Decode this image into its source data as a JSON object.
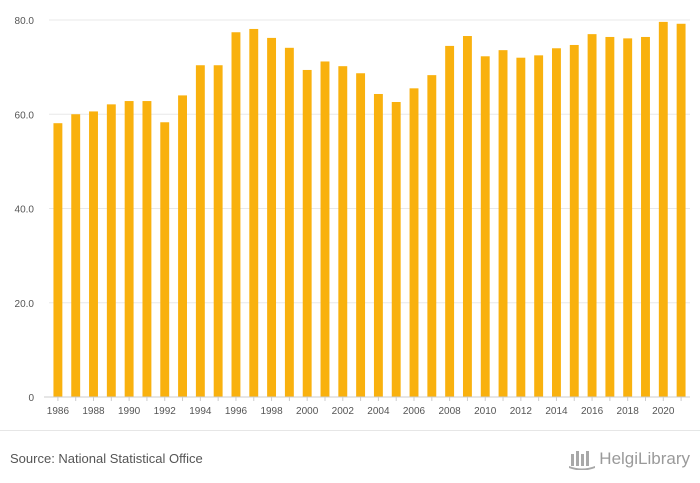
{
  "chart_data": {
    "type": "bar",
    "title": "",
    "xlabel": "",
    "ylabel": "",
    "categories": [
      1986,
      1987,
      1988,
      1989,
      1990,
      1991,
      1992,
      1993,
      1994,
      1995,
      1996,
      1997,
      1998,
      1999,
      2000,
      2001,
      2002,
      2003,
      2004,
      2005,
      2006,
      2007,
      2008,
      2009,
      2010,
      2011,
      2012,
      2013,
      2014,
      2015,
      2016,
      2017,
      2018,
      2019,
      2020,
      2021
    ],
    "values": [
      58.1,
      60.0,
      60.6,
      62.1,
      62.8,
      62.8,
      58.3,
      64.0,
      70.4,
      70.4,
      77.4,
      78.1,
      76.2,
      74.1,
      69.4,
      71.2,
      70.2,
      68.7,
      64.3,
      62.6,
      65.5,
      68.3,
      74.5,
      76.6,
      72.3,
      73.6,
      72.0,
      72.5,
      74.0,
      74.7,
      77.0,
      76.4,
      76.1,
      76.4,
      79.6,
      79.2
    ],
    "ylim": [
      0,
      80
    ],
    "yticks": [
      0,
      20,
      40,
      60,
      80
    ],
    "ytick_labels": [
      "0",
      "20.0",
      "40.0",
      "60.0",
      "80.0"
    ],
    "xtick_labels": [
      "1986",
      "1988",
      "1990",
      "1992",
      "1994",
      "1996",
      "1998",
      "2000",
      "2002",
      "2004",
      "2006",
      "2008",
      "2010",
      "2012",
      "2014",
      "2016",
      "2018",
      "2020"
    ],
    "grid": true,
    "bar_color": "#f9b10e",
    "grid_color": "#e8e8e8",
    "axis_color": "#cccccc",
    "tick_text_color": "#555555"
  },
  "footer": {
    "source": "Source: National Statistical Office",
    "brand": "HelgiLibrary",
    "brand_icon": "helgi-library-logo-icon"
  }
}
